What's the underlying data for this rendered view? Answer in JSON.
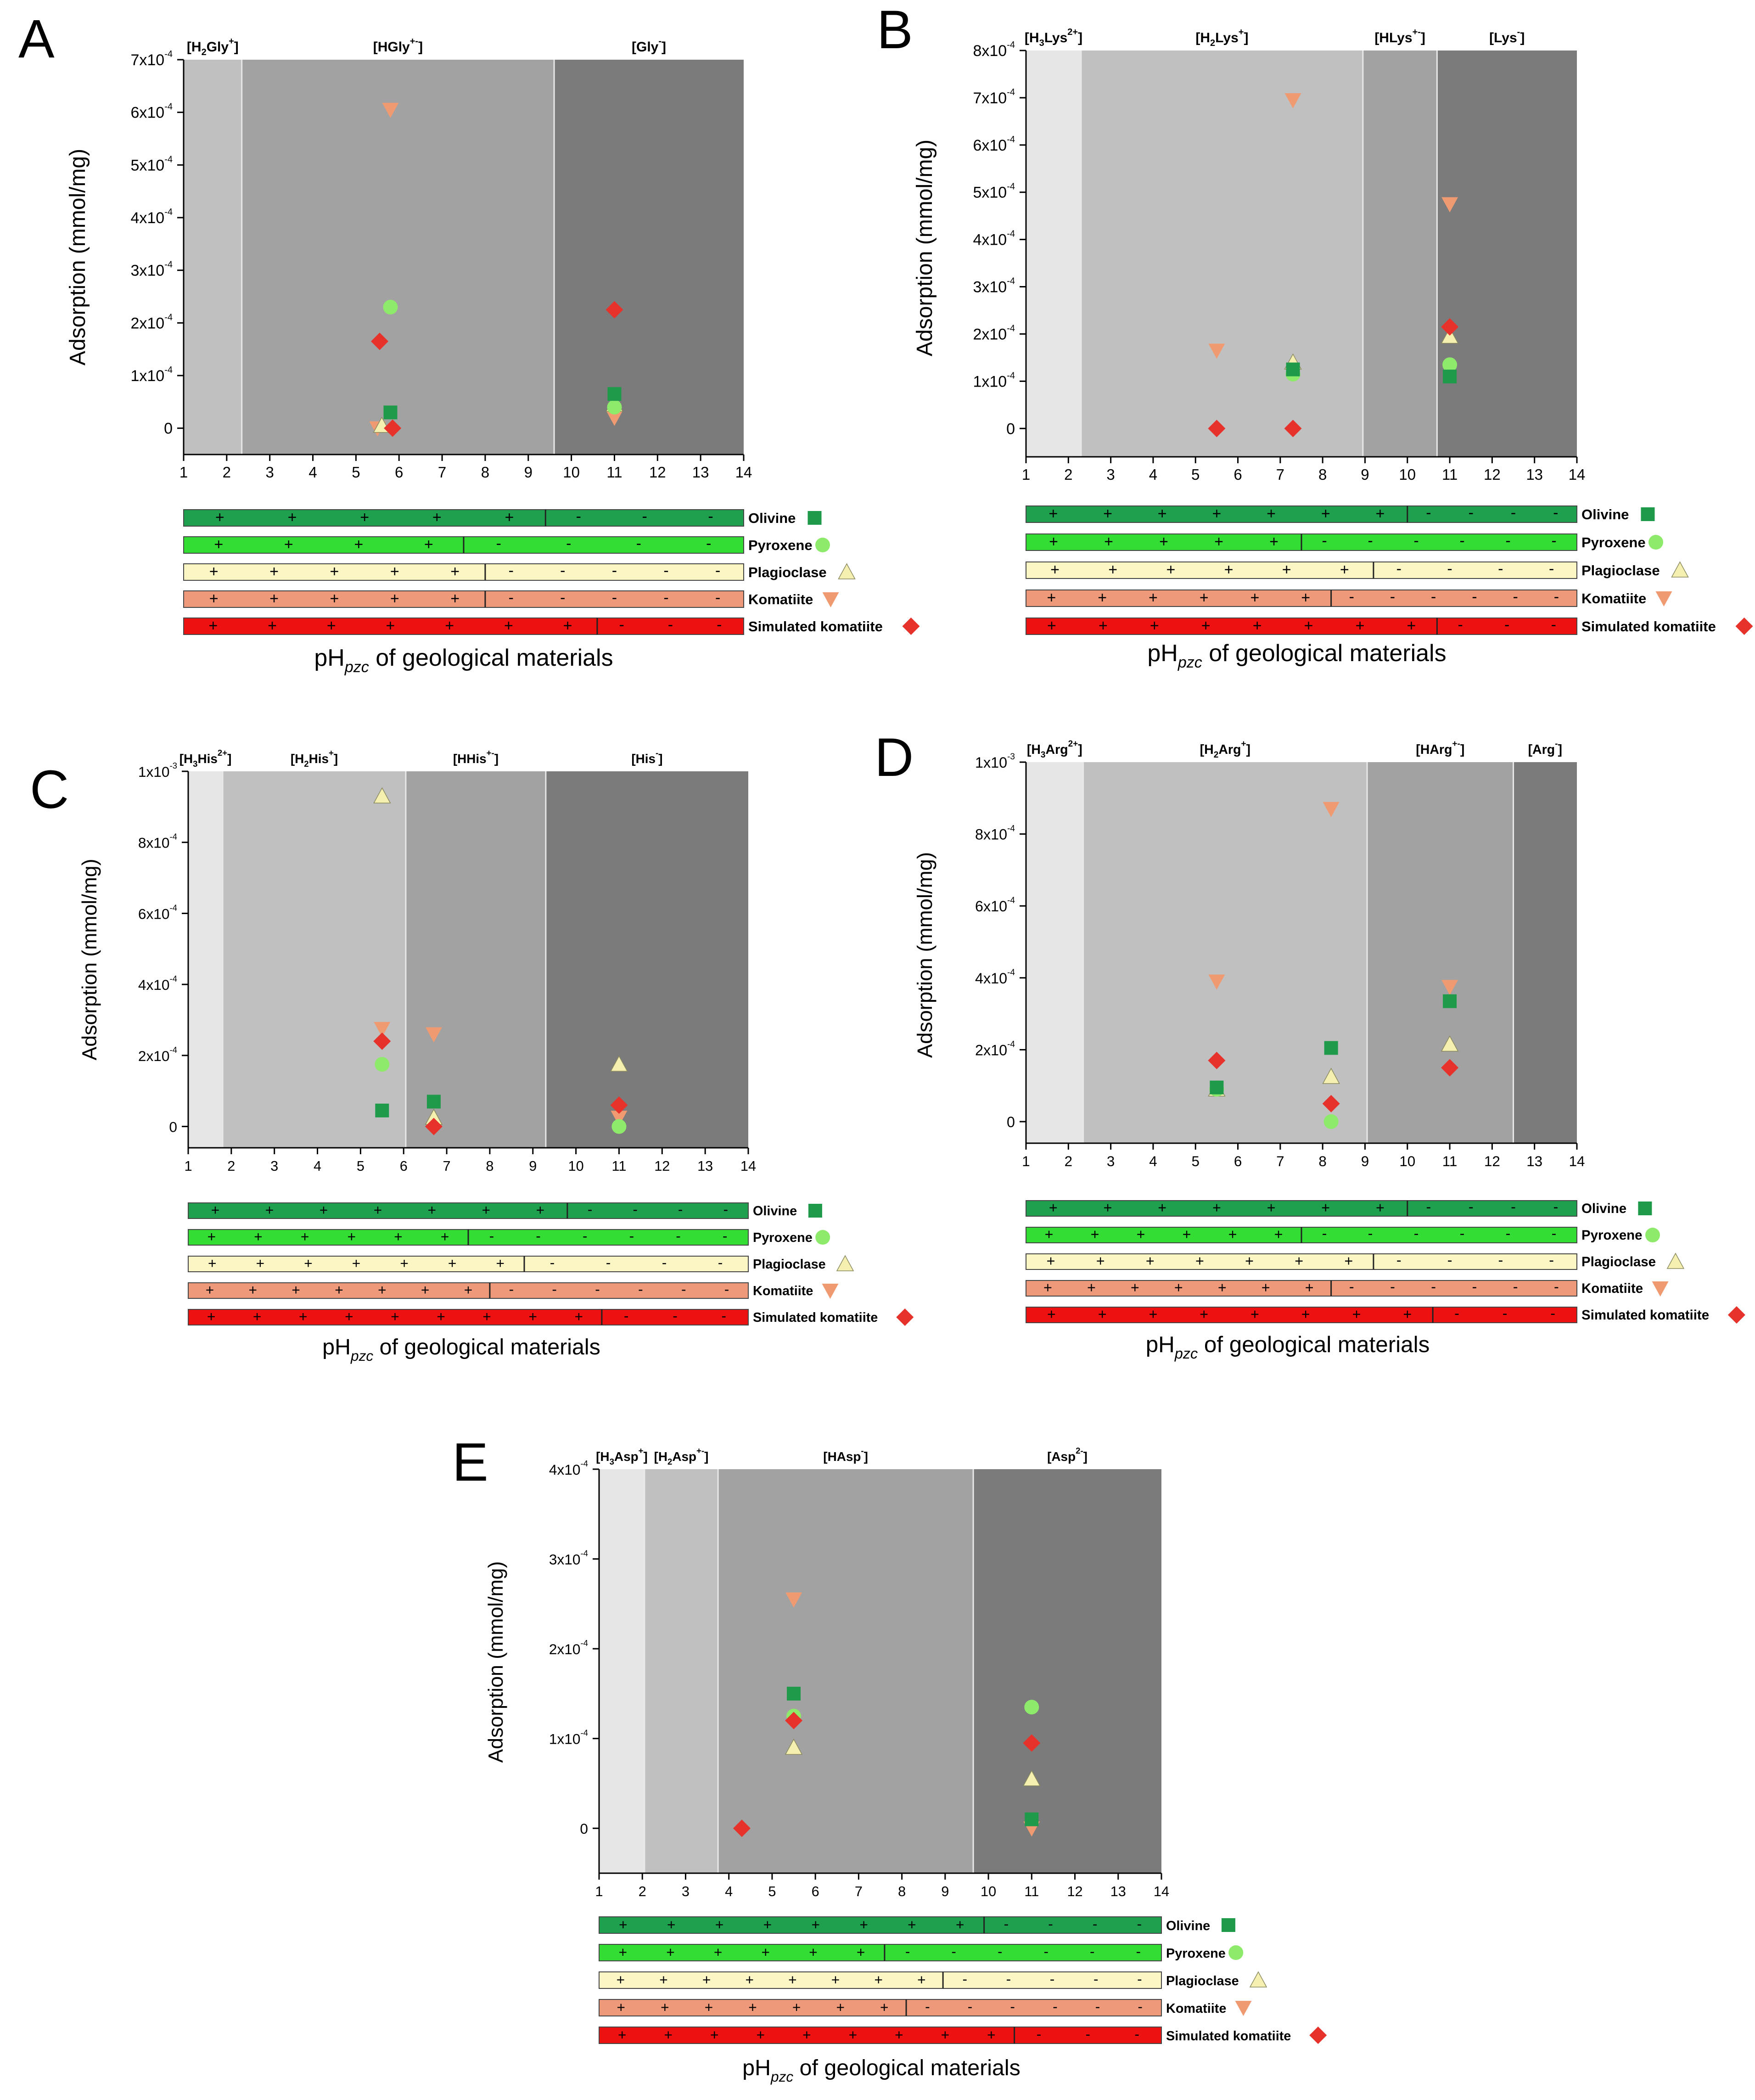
{
  "figure": {
    "ylabel": "Adsorption (mmol/mg)",
    "xlabel_main": "pH",
    "xlabel_sub": "pzc",
    "xlabel_rest": " of geological materials"
  },
  "legend": [
    {
      "name": "Olivine",
      "color": "#1f9a4a",
      "bar": "#1fa04f",
      "marker": "square"
    },
    {
      "name": "Pyroxene",
      "color": "#8eea6a",
      "bar": "#33dd33",
      "marker": "circle"
    },
    {
      "name": "Plagioclase",
      "color": "#f5f0b0",
      "bar": "#fbf6c4",
      "marker": "triangle-up"
    },
    {
      "name": "Komatiite",
      "color": "#f09a72",
      "bar": "#ee9a7a",
      "marker": "triangle-down"
    },
    {
      "name": "Simulated komatiite",
      "color": "#e6322a",
      "bar": "#ee1111",
      "marker": "diamond"
    }
  ],
  "chart_data": [
    {
      "label": "A",
      "type": "scatter",
      "title": "",
      "xlabel": "pH of geological materials",
      "ylabel": "Adsorption (mmol/mg)",
      "xlim": [
        1,
        14
      ],
      "ylim": [
        -0.5,
        7
      ],
      "xticks": [
        "1",
        "2",
        "3",
        "4",
        "5",
        "6",
        "7",
        "8",
        "9",
        "10",
        "11",
        "12",
        "13",
        "14"
      ],
      "yticks": [
        {
          "v": 0,
          "m": "0",
          "e": ""
        },
        {
          "v": 1,
          "m": "1x10",
          "e": "-4"
        },
        {
          "v": 2,
          "m": "2x10",
          "e": "-4"
        },
        {
          "v": 3,
          "m": "3x10",
          "e": "-4"
        },
        {
          "v": 4,
          "m": "4x10",
          "e": "-4"
        },
        {
          "v": 5,
          "m": "5x10",
          "e": "-4"
        },
        {
          "v": 6,
          "m": "6x10",
          "e": "-4"
        },
        {
          "v": 7,
          "m": "7x10",
          "e": "-4"
        }
      ],
      "regions": [
        {
          "from": 1,
          "to": 2.35,
          "shade": "#c0c0c0",
          "name": "[H",
          "sub": "2",
          "sup": "+",
          "tail": "Gly",
          "end": "]"
        },
        {
          "from": 2.35,
          "to": 9.6,
          "shade": "#a2a2a2",
          "name": "[HGly",
          "sub": "",
          "sup": "+-",
          "tail": "",
          "end": "]"
        },
        {
          "from": 9.6,
          "to": 14,
          "shade": "#7b7b7b",
          "name": "[Gly",
          "sub": "",
          "sup": "-",
          "tail": "",
          "end": "]"
        }
      ],
      "series": [
        {
          "name": "Olivine",
          "x": [
            5.8,
            11
          ],
          "y": [
            0.3,
            0.65
          ]
        },
        {
          "name": "Pyroxene",
          "x": [
            5.8,
            11
          ],
          "y": [
            2.3,
            0.4
          ]
        },
        {
          "name": "Plagioclase",
          "x": [
            5.6,
            11
          ],
          "y": [
            0.05,
            0.45
          ]
        },
        {
          "name": "Komatiite",
          "x": [
            5.8,
            5.5,
            11
          ],
          "y": [
            6.05,
            0.0,
            0.2
          ]
        },
        {
          "name": "Simulated komatiite",
          "x": [
            5.55,
            5.85,
            11
          ],
          "y": [
            1.65,
            0.0,
            2.25
          ]
        }
      ],
      "pzc": {
        "Olivine": {
          "n_plus": 5,
          "n_minus": 3,
          "split": 9.4
        },
        "Pyroxene": {
          "n_plus": 4,
          "n_minus": 4,
          "split": 7.5
        },
        "Plagioclase": {
          "n_plus": 5,
          "n_minus": 5,
          "split": 8.0
        },
        "Komatiite": {
          "n_plus": 5,
          "n_minus": 5,
          "split": 8.0
        },
        "Simulated komatiite": {
          "n_plus": 7,
          "n_minus": 3,
          "split": 10.6
        }
      }
    },
    {
      "label": "B",
      "type": "scatter",
      "title": "",
      "xlabel": "pH of geological materials",
      "ylabel": "Adsorption (mmol/mg)",
      "xlim": [
        1,
        14
      ],
      "ylim": [
        -0.6,
        8
      ],
      "xticks": [
        "1",
        "2",
        "3",
        "4",
        "5",
        "6",
        "7",
        "8",
        "9",
        "10",
        "11",
        "12",
        "13",
        "14"
      ],
      "yticks": [
        {
          "v": 0,
          "m": "0",
          "e": ""
        },
        {
          "v": 1,
          "m": "1x10",
          "e": "-4"
        },
        {
          "v": 2,
          "m": "2x10",
          "e": "-4"
        },
        {
          "v": 3,
          "m": "3x10",
          "e": "-4"
        },
        {
          "v": 4,
          "m": "4x10",
          "e": "-4"
        },
        {
          "v": 5,
          "m": "5x10",
          "e": "-4"
        },
        {
          "v": 6,
          "m": "6x10",
          "e": "-4"
        },
        {
          "v": 7,
          "m": "7x10",
          "e": "-4"
        },
        {
          "v": 8,
          "m": "8x10",
          "e": "-4"
        }
      ],
      "regions": [
        {
          "from": 1,
          "to": 2.3,
          "shade": "#e6e6e6",
          "name": "[H",
          "sub": "3",
          "sup": "2+",
          "tail": "Lys",
          "end": "]"
        },
        {
          "from": 2.3,
          "to": 8.95,
          "shade": "#c0c0c0",
          "name": "[H",
          "sub": "2",
          "sup": "+",
          "tail": "Lys",
          "end": "]"
        },
        {
          "from": 8.95,
          "to": 10.7,
          "shade": "#a2a2a2",
          "name": "[HLys",
          "sub": "",
          "sup": "+-",
          "tail": "",
          "end": "]"
        },
        {
          "from": 10.7,
          "to": 14,
          "shade": "#7b7b7b",
          "name": "[Lys",
          "sub": "",
          "sup": "-",
          "tail": "",
          "end": "]"
        }
      ],
      "series": [
        {
          "name": "Olivine",
          "x": [
            7.3,
            11
          ],
          "y": [
            1.25,
            1.1
          ]
        },
        {
          "name": "Pyroxene",
          "x": [
            7.3,
            11
          ],
          "y": [
            1.15,
            1.35
          ]
        },
        {
          "name": "Plagioclase",
          "x": [
            7.3,
            11
          ],
          "y": [
            1.4,
            1.95
          ]
        },
        {
          "name": "Komatiite",
          "x": [
            5.5,
            7.3,
            11
          ],
          "y": [
            1.65,
            6.95,
            4.75
          ]
        },
        {
          "name": "Simulated komatiite",
          "x": [
            5.5,
            7.3,
            11
          ],
          "y": [
            0.0,
            0.0,
            2.15
          ]
        }
      ],
      "pzc": {
        "Olivine": {
          "n_plus": 7,
          "n_minus": 4,
          "split": 10.0
        },
        "Pyroxene": {
          "n_plus": 5,
          "n_minus": 6,
          "split": 7.5
        },
        "Plagioclase": {
          "n_plus": 6,
          "n_minus": 4,
          "split": 9.2
        },
        "Komatiite": {
          "n_plus": 6,
          "n_minus": 6,
          "split": 8.2
        },
        "Simulated komatiite": {
          "n_plus": 8,
          "n_minus": 3,
          "split": 10.7
        }
      }
    },
    {
      "label": "C",
      "type": "scatter",
      "title": "",
      "xlabel": "pH of geological materials",
      "ylabel": "Adsorption (mmol/mg)",
      "xlim": [
        1,
        14
      ],
      "ylim": [
        -0.6,
        10
      ],
      "xticks": [
        "1",
        "2",
        "3",
        "4",
        "5",
        "6",
        "7",
        "8",
        "9",
        "10",
        "11",
        "12",
        "13",
        "14"
      ],
      "yticks": [
        {
          "v": 0,
          "m": "0",
          "e": ""
        },
        {
          "v": 2,
          "m": "2x10",
          "e": "-4"
        },
        {
          "v": 4,
          "m": "4x10",
          "e": "-4"
        },
        {
          "v": 6,
          "m": "6x10",
          "e": "-4"
        },
        {
          "v": 8,
          "m": "8x10",
          "e": "-4"
        },
        {
          "v": 10,
          "m": "1x10",
          "e": "-3"
        }
      ],
      "regions": [
        {
          "from": 1,
          "to": 1.8,
          "shade": "#e6e6e6",
          "name": "[H",
          "sub": "3",
          "sup": "2+",
          "tail": "His",
          "end": "]"
        },
        {
          "from": 1.8,
          "to": 6.05,
          "shade": "#c0c0c0",
          "name": "[H",
          "sub": "2",
          "sup": "+",
          "tail": "His",
          "end": "]"
        },
        {
          "from": 6.05,
          "to": 9.3,
          "shade": "#a2a2a2",
          "name": "[HHis",
          "sub": "",
          "sup": "+-",
          "tail": "",
          "end": "]"
        },
        {
          "from": 9.3,
          "to": 14,
          "shade": "#7b7b7b",
          "name": "[His",
          "sub": "",
          "sup": "-",
          "tail": "",
          "end": "]"
        }
      ],
      "series": [
        {
          "name": "Olivine",
          "x": [
            5.5,
            6.7
          ],
          "y": [
            0.45,
            0.7
          ]
        },
        {
          "name": "Pyroxene",
          "x": [
            5.5,
            11
          ],
          "y": [
            1.75,
            0.0
          ]
        },
        {
          "name": "Plagioclase",
          "x": [
            5.5,
            6.7,
            11
          ],
          "y": [
            9.3,
            0.25,
            1.75
          ]
        },
        {
          "name": "Komatiite",
          "x": [
            5.5,
            6.7,
            11
          ],
          "y": [
            2.75,
            2.6,
            0.25
          ]
        },
        {
          "name": "Simulated komatiite",
          "x": [
            5.5,
            6.7,
            11
          ],
          "y": [
            2.4,
            0.0,
            0.6
          ]
        }
      ],
      "pzc": {
        "Olivine": {
          "n_plus": 7,
          "n_minus": 4,
          "split": 9.8
        },
        "Pyroxene": {
          "n_plus": 6,
          "n_minus": 6,
          "split": 7.5
        },
        "Plagioclase": {
          "n_plus": 7,
          "n_minus": 4,
          "split": 8.8
        },
        "Komatiite": {
          "n_plus": 7,
          "n_minus": 6,
          "split": 8.0
        },
        "Simulated komatiite": {
          "n_plus": 9,
          "n_minus": 3,
          "split": 10.6
        }
      }
    },
    {
      "label": "D",
      "type": "scatter",
      "title": "",
      "xlabel": "pH of geological materials",
      "ylabel": "Adsorption (mmol/mg)",
      "xlim": [
        1,
        14
      ],
      "ylim": [
        -0.6,
        10
      ],
      "xticks": [
        "1",
        "2",
        "3",
        "4",
        "5",
        "6",
        "7",
        "8",
        "9",
        "10",
        "11",
        "12",
        "13",
        "14"
      ],
      "yticks": [
        {
          "v": 0,
          "m": "0",
          "e": ""
        },
        {
          "v": 2,
          "m": "2x10",
          "e": "-4"
        },
        {
          "v": 4,
          "m": "4x10",
          "e": "-4"
        },
        {
          "v": 6,
          "m": "6x10",
          "e": "-4"
        },
        {
          "v": 8,
          "m": "8x10",
          "e": "-4"
        },
        {
          "v": 10,
          "m": "1x10",
          "e": "-3"
        }
      ],
      "regions": [
        {
          "from": 1,
          "to": 2.35,
          "shade": "#e6e6e6",
          "name": "[H",
          "sub": "3",
          "sup": "2+",
          "tail": "Arg",
          "end": "]"
        },
        {
          "from": 2.35,
          "to": 9.05,
          "shade": "#c0c0c0",
          "name": "[H",
          "sub": "2",
          "sup": "+",
          "tail": "Arg",
          "end": "]"
        },
        {
          "from": 9.05,
          "to": 12.5,
          "shade": "#a2a2a2",
          "name": "[HArg",
          "sub": "",
          "sup": "+-",
          "tail": "",
          "end": "]"
        },
        {
          "from": 12.5,
          "to": 14,
          "shade": "#7b7b7b",
          "name": "[Arg",
          "sub": "",
          "sup": "-",
          "tail": "",
          "end": "]"
        }
      ],
      "series": [
        {
          "name": "Olivine",
          "x": [
            5.5,
            8.2,
            11
          ],
          "y": [
            0.95,
            2.05,
            3.35
          ]
        },
        {
          "name": "Pyroxene",
          "x": [
            5.5,
            8.2
          ],
          "y": [
            0.9,
            0.0
          ]
        },
        {
          "name": "Plagioclase",
          "x": [
            5.5,
            8.2,
            11
          ],
          "y": [
            0.9,
            1.25,
            2.15
          ]
        },
        {
          "name": "Komatiite",
          "x": [
            5.5,
            8.2,
            11
          ],
          "y": [
            3.9,
            8.7,
            3.75
          ]
        },
        {
          "name": "Simulated komatiite",
          "x": [
            5.5,
            8.2,
            11
          ],
          "y": [
            1.7,
            0.5,
            1.5
          ]
        }
      ],
      "pzc": {
        "Olivine": {
          "n_plus": 7,
          "n_minus": 4,
          "split": 10.0
        },
        "Pyroxene": {
          "n_plus": 6,
          "n_minus": 6,
          "split": 7.5
        },
        "Plagioclase": {
          "n_plus": 7,
          "n_minus": 4,
          "split": 9.2
        },
        "Komatiite": {
          "n_plus": 7,
          "n_minus": 6,
          "split": 8.2
        },
        "Simulated komatiite": {
          "n_plus": 8,
          "n_minus": 3,
          "split": 10.6
        }
      }
    },
    {
      "label": "E",
      "type": "scatter",
      "title": "",
      "xlabel": "pH of geological materials",
      "ylabel": "Adsorption (mmol/mg)",
      "xlim": [
        1,
        14
      ],
      "ylim": [
        -0.5,
        4
      ],
      "xticks": [
        "1",
        "2",
        "3",
        "4",
        "5",
        "6",
        "7",
        "8",
        "9",
        "10",
        "11",
        "12",
        "13",
        "14"
      ],
      "yticks": [
        {
          "v": 0,
          "m": "0",
          "e": ""
        },
        {
          "v": 1,
          "m": "1x10",
          "e": "-4"
        },
        {
          "v": 2,
          "m": "2x10",
          "e": "-4"
        },
        {
          "v": 3,
          "m": "3x10",
          "e": "-4"
        },
        {
          "v": 4,
          "m": "4x10",
          "e": "-4"
        }
      ],
      "regions": [
        {
          "from": 1,
          "to": 2.05,
          "shade": "#e6e6e6",
          "name": "[H",
          "sub": "3",
          "sup": "+",
          "tail": "Asp",
          "end": "]"
        },
        {
          "from": 2.05,
          "to": 3.75,
          "shade": "#c0c0c0",
          "name": "[H",
          "sub": "2",
          "sup": "+-",
          "tail": "Asp",
          "end": "]"
        },
        {
          "from": 3.75,
          "to": 9.65,
          "shade": "#a2a2a2",
          "name": "[HAsp",
          "sub": "",
          "sup": "-",
          "tail": "",
          "end": "]"
        },
        {
          "from": 9.65,
          "to": 14,
          "shade": "#7b7b7b",
          "name": "[Asp",
          "sub": "",
          "sup": "2-",
          "tail": "",
          "end": "]"
        }
      ],
      "series": [
        {
          "name": "Olivine",
          "x": [
            5.5,
            11
          ],
          "y": [
            1.5,
            0.1
          ]
        },
        {
          "name": "Pyroxene",
          "x": [
            5.5,
            11
          ],
          "y": [
            1.25,
            1.35
          ]
        },
        {
          "name": "Plagioclase",
          "x": [
            5.5,
            11
          ],
          "y": [
            0.9,
            0.55
          ]
        },
        {
          "name": "Komatiite",
          "x": [
            5.5,
            11
          ],
          "y": [
            2.55,
            0.0
          ]
        },
        {
          "name": "Simulated komatiite",
          "x": [
            4.3,
            5.5,
            11
          ],
          "y": [
            0.0,
            1.2,
            0.95
          ]
        }
      ],
      "pzc": {
        "Olivine": {
          "n_plus": 8,
          "n_minus": 4,
          "split": 9.9
        },
        "Pyroxene": {
          "n_plus": 6,
          "n_minus": 6,
          "split": 7.6
        },
        "Plagioclase": {
          "n_plus": 8,
          "n_minus": 5,
          "split": 8.95
        },
        "Komatiite": {
          "n_plus": 7,
          "n_minus": 6,
          "split": 8.1
        },
        "Simulated komatiite": {
          "n_plus": 9,
          "n_minus": 3,
          "split": 10.6
        }
      }
    }
  ]
}
